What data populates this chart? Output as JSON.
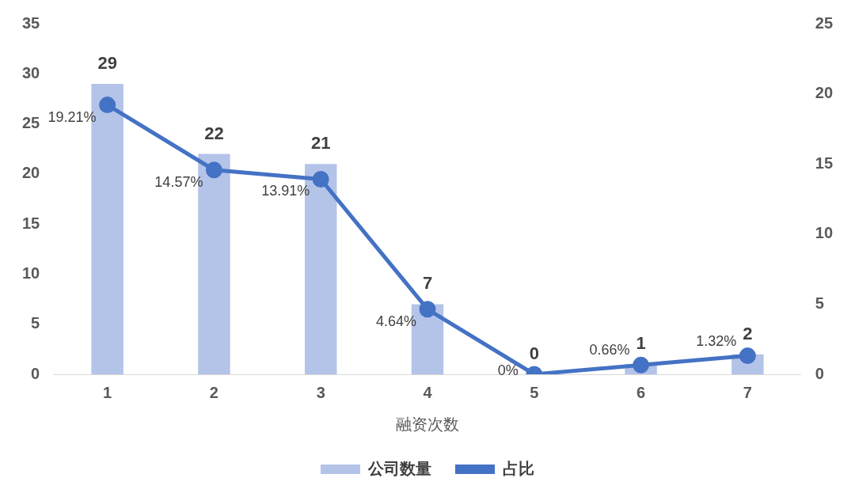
{
  "chart_data": {
    "type": "bar",
    "xlabel": "融资次数",
    "categories": [
      "1",
      "2",
      "3",
      "4",
      "5",
      "6",
      "7"
    ],
    "series": [
      {
        "name": "公司数量",
        "color": "#b4c3e8",
        "values": [
          29,
          22,
          21,
          7,
          0,
          1,
          2
        ],
        "value_labels": [
          "29",
          "22",
          "21",
          "7",
          "0",
          "1",
          "2"
        ]
      },
      {
        "name": "占比",
        "type": "line",
        "axis": "y2",
        "color": "#4472c4",
        "values": [
          19.21,
          14.57,
          13.91,
          4.64,
          0,
          0.66,
          1.32
        ],
        "value_labels": [
          "19.21%",
          "14.57%",
          "13.91%",
          "4.64%",
          "0%",
          "0.66%",
          "1.32%"
        ]
      }
    ],
    "ylim": [
      0,
      35
    ],
    "yticks": [
      0,
      5,
      10,
      15,
      20,
      25,
      30,
      35
    ],
    "y2lim": [
      0,
      25
    ],
    "y2ticks": [
      0,
      5,
      10,
      15,
      20,
      25
    ],
    "grid": false,
    "legend": "bottom",
    "marker": "circle",
    "line_style": "solid"
  }
}
